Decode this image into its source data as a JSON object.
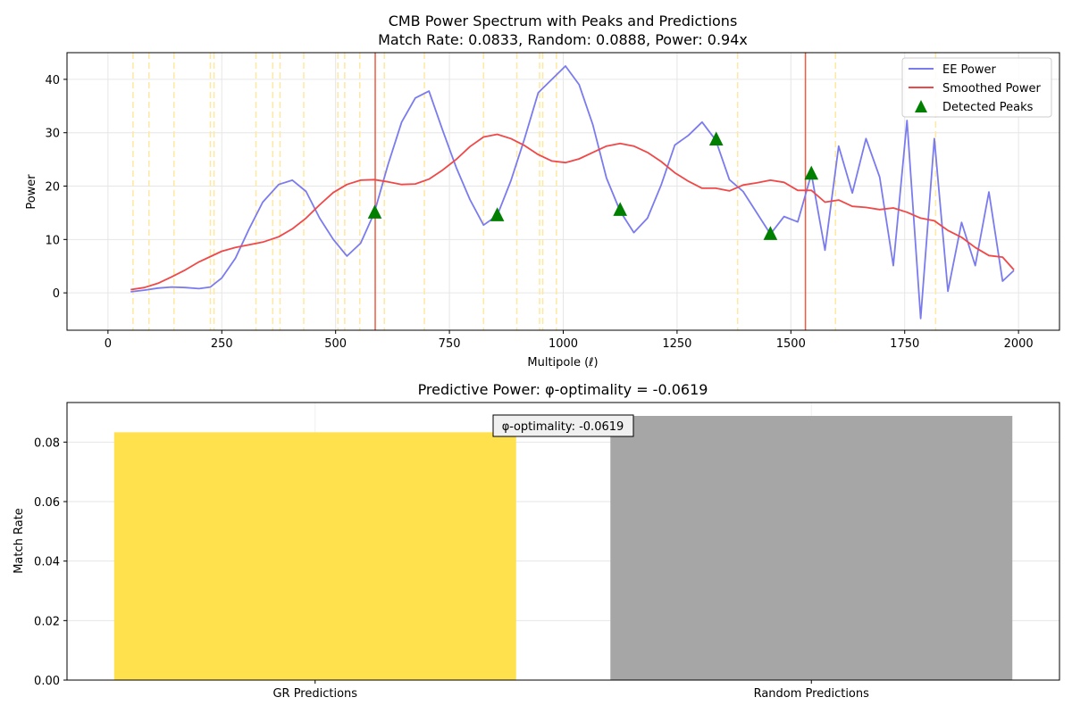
{
  "colors": {
    "ee_power": "#7b7bf0",
    "smoothed_power": "#f04848",
    "peaks": "#007f00",
    "prediction_lines": "#ffe8a0",
    "gr_bar": "#ffe14d",
    "random_bar": "#a6a6a6",
    "grid": "#e6e6e6"
  },
  "chart_data": [
    {
      "type": "line",
      "title": "CMB Power Spectrum with Peaks and Predictions",
      "subtitle": "Match Rate: 0.0833, Random: 0.0888, Power: 0.94x",
      "xlabel": "Multipole (ℓ)",
      "ylabel": "Power",
      "xlim": [
        -90,
        2090
      ],
      "ylim": [
        -7,
        45
      ],
      "xticks": [
        0,
        250,
        500,
        750,
        1000,
        1250,
        1500,
        1750,
        2000
      ],
      "yticks": [
        0,
        10,
        20,
        30,
        40
      ],
      "grid": true,
      "legend_position": "top-right",
      "legend": [
        "EE Power",
        "Smoothed Power",
        "Detected Peaks"
      ],
      "series": [
        {
          "name": "EE Power",
          "x": [
            50,
            80,
            110,
            140,
            170,
            200,
            225,
            250,
            280,
            310,
            340,
            375,
            405,
            435,
            465,
            495,
            525,
            555,
            585,
            615,
            645,
            675,
            705,
            735,
            765,
            795,
            825,
            855,
            885,
            915,
            945,
            975,
            1005,
            1035,
            1065,
            1095,
            1125,
            1155,
            1185,
            1215,
            1245,
            1275,
            1305,
            1335,
            1365,
            1395,
            1425,
            1455,
            1485,
            1515,
            1545,
            1575,
            1605,
            1635,
            1665,
            1695,
            1725,
            1755,
            1785,
            1815,
            1845,
            1875,
            1905,
            1935,
            1965,
            1990
          ],
          "y": [
            0.2,
            0.5,
            0.9,
            1.1,
            1.0,
            0.8,
            1.1,
            2.8,
            6.5,
            12,
            17,
            20.3,
            21.1,
            19,
            14,
            10,
            6.9,
            9.3,
            15,
            24,
            32,
            36.5,
            37.8,
            30.5,
            23.5,
            17.5,
            12.7,
            14.5,
            21,
            28.9,
            37.5,
            40,
            42.5,
            39,
            31.5,
            21.5,
            15.3,
            11.3,
            14,
            20.2,
            27.7,
            29.5,
            32,
            28.6,
            21.2,
            19,
            15,
            11,
            14.3,
            13.3,
            22.3,
            8,
            27.5,
            18.7,
            28.9,
            21.7,
            5.1,
            32.3,
            -4.8,
            28.9,
            0.3,
            13.2,
            5.1,
            18.9,
            2.2,
            4.2
          ]
        },
        {
          "name": "Smoothed Power",
          "x": [
            50,
            80,
            110,
            140,
            170,
            200,
            225,
            250,
            280,
            310,
            340,
            375,
            405,
            435,
            465,
            495,
            525,
            555,
            585,
            615,
            645,
            675,
            705,
            735,
            765,
            795,
            825,
            855,
            885,
            915,
            945,
            975,
            1005,
            1035,
            1065,
            1095,
            1125,
            1155,
            1185,
            1215,
            1245,
            1275,
            1305,
            1335,
            1365,
            1395,
            1425,
            1455,
            1485,
            1515,
            1545,
            1575,
            1605,
            1635,
            1665,
            1695,
            1725,
            1755,
            1785,
            1815,
            1845,
            1875,
            1905,
            1935,
            1965,
            1990
          ],
          "y": [
            0.6,
            1.0,
            1.8,
            3.0,
            4.3,
            5.8,
            6.8,
            7.8,
            8.5,
            9.0,
            9.5,
            10.5,
            12.0,
            14.0,
            16.5,
            18.8,
            20.3,
            21.1,
            21.2,
            20.8,
            20.3,
            20.4,
            21.3,
            23.0,
            25.0,
            27.4,
            29.2,
            29.7,
            28.9,
            27.6,
            25.9,
            24.7,
            24.4,
            25.1,
            26.3,
            27.5,
            28.0,
            27.5,
            26.3,
            24.6,
            22.5,
            20.9,
            19.6,
            19.6,
            19.1,
            20.2,
            20.6,
            21.1,
            20.7,
            19.2,
            19.2,
            17.0,
            17.4,
            16.2,
            16.0,
            15.6,
            15.9,
            15.1,
            14.0,
            13.5,
            11.7,
            10.4,
            8.5,
            7.0,
            6.7,
            4.3
          ]
        }
      ],
      "peaks": {
        "x": [
          586,
          855,
          1125,
          1336,
          1455,
          1545
        ],
        "y": [
          15.0,
          14.5,
          15.5,
          28.7,
          11.0,
          22.3
        ]
      },
      "predicted_lines_dashed": [
        55,
        90,
        145,
        225,
        233,
        325,
        362,
        378,
        430,
        505,
        520,
        553,
        607,
        695,
        825,
        898,
        948,
        955,
        985,
        1383,
        1598,
        1818
      ],
      "predicted_lines_solid": [
        587,
        1532
      ]
    },
    {
      "type": "bar",
      "title": "Predictive Power: φ-optimality = -0.0619",
      "xlabel": "",
      "ylabel": "Match Rate",
      "categories": [
        "GR Predictions",
        "Random Predictions"
      ],
      "values": [
        0.0833,
        0.0888
      ],
      "ylim": [
        0,
        0.0933
      ],
      "yticks": [
        0.0,
        0.02,
        0.04,
        0.06,
        0.08
      ],
      "grid": true,
      "annotation": "φ-optimality: -0.0619"
    }
  ]
}
